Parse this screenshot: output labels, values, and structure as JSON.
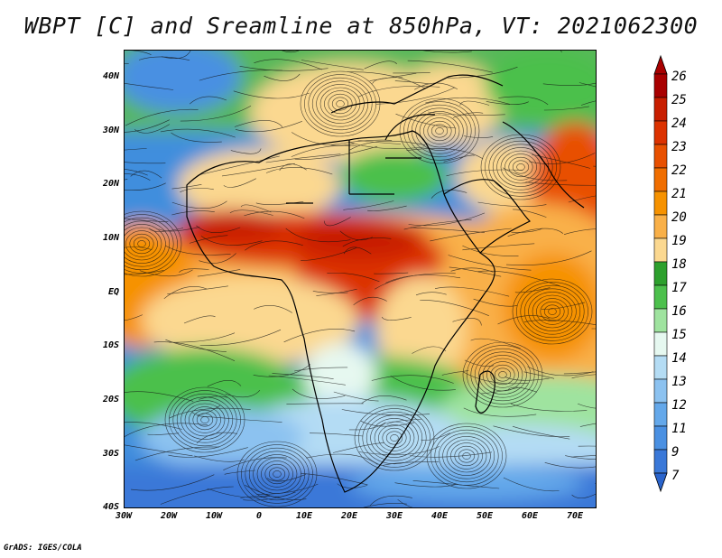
{
  "title": "WBPT [C] and Sreamline at 850hPa, VT: 2021062300",
  "credit": "GrADS: IGES/COLA",
  "map": {
    "lon_range": [
      -30,
      75
    ],
    "lat_range": [
      -40,
      45
    ],
    "y_ticks": [
      "40N",
      "30N",
      "20N",
      "10N",
      "EQ",
      "10S",
      "20S",
      "30S",
      "40S"
    ],
    "x_ticks": [
      "30W",
      "20W",
      "10W",
      "0",
      "10E",
      "20E",
      "30E",
      "40E",
      "50E",
      "60E",
      "70E"
    ]
  },
  "colorbar": {
    "labels": [
      "26",
      "25",
      "24",
      "23",
      "22",
      "21",
      "20",
      "19",
      "18",
      "17",
      "16",
      "15",
      "14",
      "13",
      "12",
      "11",
      "9",
      "7"
    ],
    "colors": [
      "#a80000",
      "#c81e00",
      "#dc3200",
      "#e85000",
      "#f06e00",
      "#f69200",
      "#f9b048",
      "#fbd890",
      "#2da02d",
      "#4cc04c",
      "#9fe39f",
      "#e6f8f0",
      "#b4dcf4",
      "#8cc2f0",
      "#64a8ea",
      "#4a90e2",
      "#3a78d8",
      "#2a64cc"
    ]
  }
}
